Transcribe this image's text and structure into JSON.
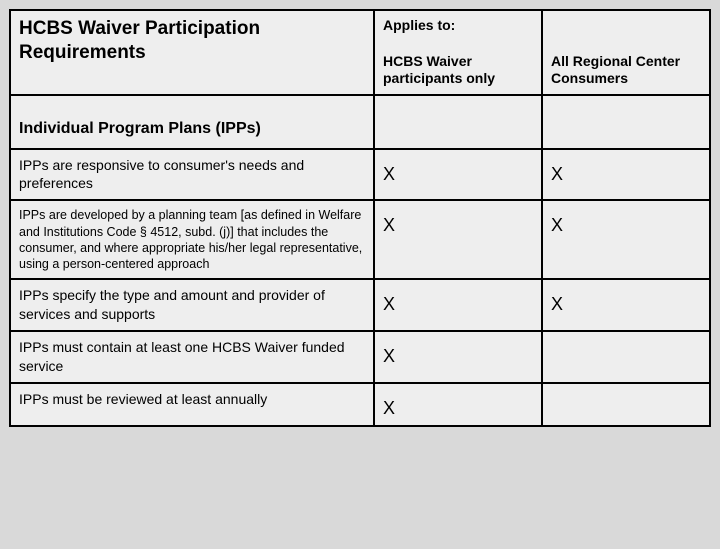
{
  "table": {
    "background_color": "#eeeeee",
    "border_color": "#000000",
    "border_width": 2,
    "columns": [
      {
        "key": "requirement",
        "width_pct": 52
      },
      {
        "key": "hcbs_only",
        "width_pct": 24
      },
      {
        "key": "all_consumers",
        "width_pct": 24
      }
    ],
    "header": {
      "title": "HCBS Waiver Participation Requirements",
      "applies_to_label": "Applies to:",
      "col2_label": "HCBS Waiver participants only",
      "col3_label": "All Regional Center Consumers",
      "title_fontsize": 19,
      "label_fontsize": 14
    },
    "section_heading": "Individual Program Plans (IPPs)",
    "rows": [
      {
        "text": "IPPs are responsive to consumer's needs and preferences",
        "size": "normal",
        "hcbs_only": "X",
        "all_consumers": "X"
      },
      {
        "text": "IPPs are developed by a planning team [as defined in Welfare and Institutions Code § 4512, subd. (j)] that includes the consumer, and where appropriate his/her legal representative, using a person-centered approach",
        "size": "small",
        "hcbs_only": "X",
        "all_consumers": "X"
      },
      {
        "text": "IPPs specify the type and amount and provider of services and supports",
        "size": "normal",
        "hcbs_only": "X",
        "all_consumers": "X"
      },
      {
        "text": "IPPs must contain at least one HCBS Waiver funded service",
        "size": "normal",
        "hcbs_only": "X",
        "all_consumers": ""
      },
      {
        "text": "IPPs must be reviewed at least annually",
        "size": "normal",
        "hcbs_only": "X",
        "all_consumers": ""
      }
    ]
  }
}
